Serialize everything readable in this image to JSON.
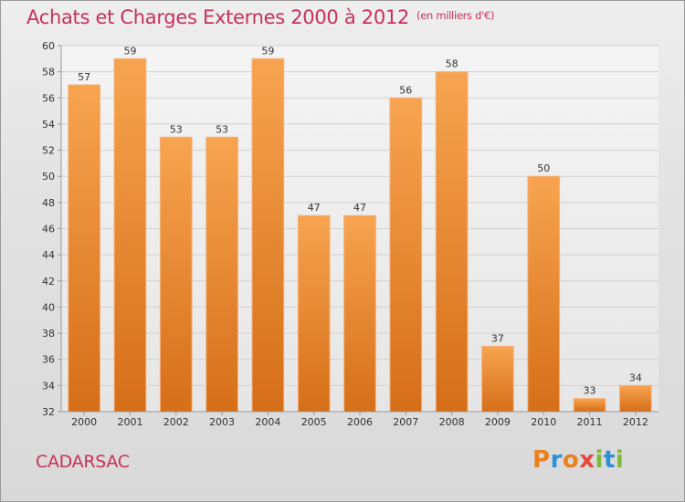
{
  "title": "Achats et Charges Externes 2000 à 2012",
  "unit_note": "(en milliers d'€)",
  "commune": "CADARSAC",
  "brand": "Proxiti",
  "brand_colors": [
    "#e8811c",
    "#2c8fd8",
    "#e8811c",
    "#e34a3c",
    "#7fb83a",
    "#2c8fd8",
    "#7fb83a"
  ],
  "chart_data": {
    "type": "bar",
    "categories": [
      "2000",
      "2001",
      "2002",
      "2003",
      "2004",
      "2005",
      "2006",
      "2007",
      "2008",
      "2009",
      "2010",
      "2011",
      "2012"
    ],
    "values": [
      57,
      59,
      53,
      53,
      59,
      47,
      47,
      56,
      58,
      37,
      50,
      33,
      34
    ],
    "ylim": [
      32,
      60
    ],
    "ytick_step": 2,
    "grid": true,
    "bar_color": "#f0923a"
  }
}
